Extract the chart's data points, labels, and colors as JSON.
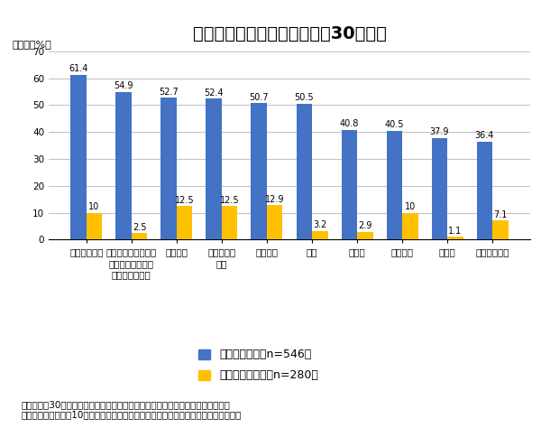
{
  "title": "スポーツ観戦について（平成30年度）",
  "unit_label": "（単位：%）",
  "categories": [
    "プロサッカー",
    "フィギュアスケート\nスピードスケート\nアイスホッケー",
    "プロ野球",
    "マラソン、\n駅伝",
    "高校野球",
    "相撲",
    "テニス",
    "陸上競技",
    "スキー",
    "バレーボール"
  ],
  "tv_values": [
    61.4,
    54.9,
    52.7,
    52.4,
    50.7,
    50.5,
    40.8,
    40.5,
    37.9,
    36.4
  ],
  "live_values": [
    10.0,
    2.5,
    12.5,
    12.5,
    12.9,
    3.2,
    2.9,
    10.0,
    1.1,
    7.1
  ],
  "live_labels": [
    "10",
    "2.5",
    "12.5",
    "12.5",
    "12.9",
    "3.2",
    "2.9",
    "10",
    "1.1",
    "7.1"
  ],
  "tv_color": "#4472C4",
  "live_color": "#FFC000",
  "ylim": [
    0,
    70
  ],
  "yticks": [
    0,
    10,
    20,
    30,
    40,
    50,
    60,
    70
  ],
  "legend_tv": "テレビで観戦（n=546）",
  "legend_live": "直接現地で観戦（n=280）",
  "footer_line1": "出典：平成30年度「県民の運動・スポーツに関する意識・実態調査」（鳥取県）",
  "footer_line2": "テレビ観戦割合上位10の競技におけるテレビ観戦割合及び競技場での観戦割合を抽出",
  "bg_color": "#FFFFFF",
  "bar_width": 0.35,
  "title_fontsize": 14,
  "tick_fontsize": 7.5,
  "label_fontsize": 7,
  "legend_fontsize": 9,
  "footer_fontsize": 7.5
}
